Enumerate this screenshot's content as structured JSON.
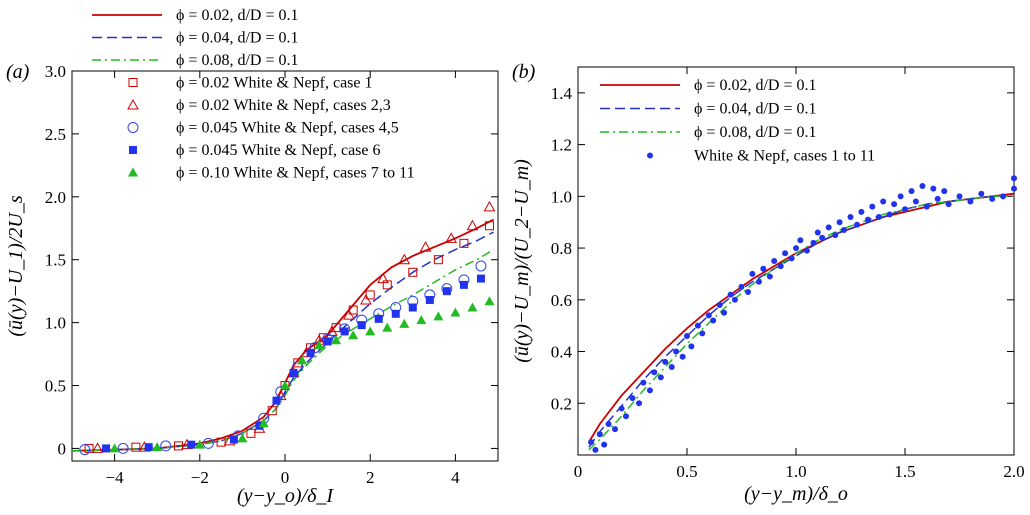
{
  "chart_data": [
    {
      "panel_label": "(a)",
      "type": "line",
      "xlabel": "(y−y_o)/δ_I",
      "ylabel": "(ū(y)−U_1)/2U_s",
      "xlim": [
        -5,
        5
      ],
      "ylim": [
        -0.1,
        3.0
      ],
      "xticks": [
        "−4",
        "−2",
        "0",
        "2",
        "4"
      ],
      "yticks": [
        "0",
        "0.5",
        "1.0",
        "1.5",
        "2.0",
        "2.5",
        "3.0"
      ],
      "grid": false,
      "legend_position": "top-left, outside plot",
      "series": [
        {
          "name": "ϕ = 0.02, d/D = 0.1",
          "kind": "line",
          "color": "#cc0000",
          "dash": "solid",
          "x": [
            -5,
            -4,
            -3,
            -2,
            -1.5,
            -1,
            -0.5,
            -0.2,
            0,
            0.2,
            0.5,
            1,
            1.5,
            2,
            2.5,
            3,
            3.5,
            4,
            4.5,
            4.9
          ],
          "y": [
            -0.02,
            -0.01,
            0,
            0.04,
            0.08,
            0.14,
            0.25,
            0.38,
            0.52,
            0.66,
            0.78,
            0.9,
            1.1,
            1.3,
            1.44,
            1.53,
            1.6,
            1.67,
            1.75,
            1.82
          ]
        },
        {
          "name": "ϕ = 0.04, d/D = 0.1",
          "kind": "line",
          "color": "#2233cc",
          "dash": "dashed",
          "x": [
            -5,
            -4,
            -3,
            -2,
            -1.5,
            -1,
            -0.5,
            -0.2,
            0,
            0.2,
            0.5,
            1,
            1.5,
            2,
            2.5,
            3,
            3.5,
            4,
            4.5,
            4.9
          ],
          "y": [
            -0.02,
            -0.01,
            0,
            0.03,
            0.06,
            0.12,
            0.22,
            0.32,
            0.45,
            0.56,
            0.68,
            0.84,
            1.0,
            1.15,
            1.28,
            1.4,
            1.5,
            1.58,
            1.65,
            1.72
          ]
        },
        {
          "name": "ϕ = 0.08, d/D = 0.1",
          "kind": "line",
          "color": "#22bb22",
          "dash": "dashdot",
          "x": [
            -5,
            -4,
            -3,
            -2,
            -1.5,
            -1,
            -0.5,
            -0.2,
            0,
            0.2,
            0.5,
            1,
            1.5,
            2,
            2.5,
            3,
            3.5,
            4,
            4.5,
            4.9
          ],
          "y": [
            -0.02,
            -0.01,
            0,
            0.03,
            0.06,
            0.12,
            0.22,
            0.32,
            0.42,
            0.54,
            0.66,
            0.82,
            0.93,
            1.03,
            1.13,
            1.22,
            1.32,
            1.42,
            1.5,
            1.58
          ]
        },
        {
          "name": "ϕ = 0.02  White & Nepf, case 1",
          "kind": "marker",
          "marker": "square-open",
          "color": "#cc0000",
          "x": [
            -4.6,
            -3.5,
            -2.5,
            -1.5,
            -0.8,
            -0.3,
            0,
            0.3,
            0.6,
            0.9,
            1.2,
            1.6,
            2,
            2.4,
            3,
            3.6,
            4.2,
            4.8
          ],
          "y": [
            0,
            0.01,
            0.02,
            0.05,
            0.12,
            0.3,
            0.5,
            0.68,
            0.8,
            0.88,
            0.96,
            1.1,
            1.22,
            1.3,
            1.4,
            1.5,
            1.63,
            1.77
          ]
        },
        {
          "name": "ϕ = 0.02  White & Nepf, cases 2,3",
          "kind": "marker",
          "marker": "triangle-open",
          "color": "#cc0000",
          "x": [
            -4.4,
            -3.3,
            -2.3,
            -1.3,
            -0.6,
            -0.1,
            0.2,
            0.5,
            0.8,
            1.1,
            1.5,
            1.9,
            2.3,
            2.8,
            3.3,
            3.9,
            4.4,
            4.8
          ],
          "y": [
            0,
            0.01,
            0.03,
            0.06,
            0.16,
            0.42,
            0.6,
            0.76,
            0.86,
            0.93,
            1.06,
            1.18,
            1.35,
            1.5,
            1.6,
            1.67,
            1.77,
            1.92
          ]
        },
        {
          "name": "ϕ = 0.045  White & Nepf, cases 4,5",
          "kind": "marker",
          "marker": "circle-open",
          "color": "#3344ee",
          "x": [
            -4.7,
            -3.8,
            -2.8,
            -1.8,
            -1.1,
            -0.5,
            -0.1,
            0.3,
            0.7,
            1.0,
            1.4,
            1.8,
            2.2,
            2.6,
            3,
            3.4,
            3.8,
            4.2,
            4.6
          ],
          "y": [
            -0.01,
            0,
            0.02,
            0.04,
            0.1,
            0.24,
            0.45,
            0.65,
            0.8,
            0.87,
            0.95,
            1.02,
            1.07,
            1.12,
            1.17,
            1.22,
            1.27,
            1.34,
            1.45
          ]
        },
        {
          "name": "ϕ = 0.045  White & Nepf, case 6",
          "kind": "marker",
          "marker": "square-filled",
          "color": "#2233ee",
          "x": [
            -4.2,
            -3.2,
            -2.2,
            -1.2,
            -0.6,
            -0.2,
            0.2,
            0.6,
            1.0,
            1.4,
            1.8,
            2.2,
            2.6,
            3,
            3.4,
            3.8,
            4.2,
            4.6
          ],
          "y": [
            0,
            0.01,
            0.03,
            0.07,
            0.18,
            0.38,
            0.6,
            0.76,
            0.85,
            0.93,
            0.98,
            1.03,
            1.07,
            1.12,
            1.18,
            1.25,
            1.3,
            1.35
          ]
        },
        {
          "name": "ϕ = 0.10  White & Nepf, cases 7 to 11",
          "kind": "marker",
          "marker": "triangle-filled",
          "color": "#22bb22",
          "x": [
            -4.0,
            -3.0,
            -2.0,
            -1.0,
            -0.5,
            0,
            0.4,
            0.8,
            1.2,
            1.6,
            2.0,
            2.4,
            2.8,
            3.2,
            3.6,
            4.0,
            4.4,
            4.8
          ],
          "y": [
            0,
            0.01,
            0.03,
            0.08,
            0.2,
            0.5,
            0.7,
            0.82,
            0.86,
            0.9,
            0.93,
            0.96,
            0.99,
            1.02,
            1.05,
            1.08,
            1.12,
            1.17
          ]
        }
      ]
    },
    {
      "panel_label": "(b)",
      "type": "line",
      "xlabel": "(y−y_m)/δ_o",
      "ylabel": "(ū(y)−U_m)/(U_2−U_m)",
      "xlim": [
        0,
        2.0
      ],
      "ylim": [
        0,
        1.5
      ],
      "xticks": [
        "0",
        "0.5",
        "1.0",
        "1.5",
        "2.0"
      ],
      "yticks": [
        "0.2",
        "0.4",
        "0.6",
        "0.8",
        "1.0",
        "1.2",
        "1.4"
      ],
      "grid": false,
      "legend_position": "top-left, inside plot",
      "series": [
        {
          "name": "ϕ = 0.02, d/D = 0.1",
          "kind": "line",
          "color": "#cc0000",
          "dash": "solid",
          "x": [
            0.05,
            0.1,
            0.2,
            0.3,
            0.4,
            0.5,
            0.6,
            0.7,
            0.8,
            0.9,
            1.0,
            1.1,
            1.2,
            1.3,
            1.4,
            1.5,
            1.6,
            1.7,
            1.8,
            1.9,
            2.0
          ],
          "y": [
            0.05,
            0.12,
            0.23,
            0.32,
            0.41,
            0.49,
            0.56,
            0.62,
            0.68,
            0.73,
            0.78,
            0.82,
            0.86,
            0.89,
            0.92,
            0.94,
            0.96,
            0.98,
            0.99,
            1.0,
            1.01
          ]
        },
        {
          "name": "ϕ = 0.04, d/D = 0.1",
          "kind": "line",
          "color": "#2233cc",
          "dash": "dashed",
          "x": [
            0.05,
            0.1,
            0.2,
            0.3,
            0.4,
            0.5,
            0.6,
            0.7,
            0.8,
            0.9,
            1.0,
            1.1,
            1.2,
            1.3,
            1.4,
            1.5,
            1.6,
            1.7,
            1.8,
            1.9,
            2.0
          ],
          "y": [
            0.03,
            0.09,
            0.19,
            0.29,
            0.38,
            0.46,
            0.54,
            0.61,
            0.67,
            0.72,
            0.77,
            0.82,
            0.86,
            0.89,
            0.92,
            0.95,
            0.97,
            0.98,
            0.99,
            1.0,
            1.0
          ]
        },
        {
          "name": "ϕ = 0.08, d/D = 0.1",
          "kind": "line",
          "color": "#22bb22",
          "dash": "dashdot",
          "x": [
            0.05,
            0.1,
            0.2,
            0.3,
            0.4,
            0.5,
            0.6,
            0.7,
            0.8,
            0.9,
            1.0,
            1.1,
            1.2,
            1.3,
            1.4,
            1.5,
            1.6,
            1.7,
            1.8,
            1.9,
            2.0
          ],
          "y": [
            0.02,
            0.06,
            0.15,
            0.25,
            0.34,
            0.43,
            0.51,
            0.59,
            0.66,
            0.72,
            0.78,
            0.83,
            0.87,
            0.9,
            0.93,
            0.95,
            0.97,
            0.98,
            0.99,
            1.0,
            1.0
          ]
        },
        {
          "name": "White & Nepf, cases 1 to 11",
          "kind": "marker",
          "marker": "dot",
          "color": "#2233ee",
          "x": [
            0.06,
            0.08,
            0.1,
            0.12,
            0.14,
            0.17,
            0.2,
            0.22,
            0.25,
            0.28,
            0.3,
            0.33,
            0.35,
            0.38,
            0.4,
            0.43,
            0.45,
            0.48,
            0.5,
            0.52,
            0.55,
            0.57,
            0.6,
            0.62,
            0.65,
            0.67,
            0.7,
            0.72,
            0.75,
            0.78,
            0.8,
            0.83,
            0.85,
            0.88,
            0.9,
            0.93,
            0.95,
            0.98,
            1.0,
            1.02,
            1.05,
            1.08,
            1.1,
            1.12,
            1.15,
            1.18,
            1.2,
            1.22,
            1.25,
            1.28,
            1.3,
            1.33,
            1.35,
            1.38,
            1.4,
            1.43,
            1.45,
            1.48,
            1.5,
            1.53,
            1.55,
            1.58,
            1.6,
            1.63,
            1.65,
            1.68,
            1.7,
            1.75,
            1.8,
            1.85,
            1.9,
            1.95,
            2.0,
            2.0
          ],
          "y": [
            0.05,
            0.02,
            0.08,
            0.04,
            0.12,
            0.1,
            0.18,
            0.15,
            0.22,
            0.2,
            0.28,
            0.25,
            0.32,
            0.3,
            0.36,
            0.34,
            0.4,
            0.38,
            0.46,
            0.42,
            0.5,
            0.47,
            0.54,
            0.52,
            0.58,
            0.55,
            0.62,
            0.6,
            0.65,
            0.63,
            0.7,
            0.67,
            0.72,
            0.69,
            0.75,
            0.73,
            0.78,
            0.76,
            0.8,
            0.83,
            0.79,
            0.82,
            0.86,
            0.84,
            0.88,
            0.85,
            0.9,
            0.87,
            0.92,
            0.89,
            0.94,
            0.91,
            0.96,
            0.92,
            0.98,
            0.93,
            0.97,
            1.0,
            0.95,
            1.02,
            0.98,
            1.04,
            0.96,
            1.03,
            0.99,
            1.02,
            0.97,
            1.0,
            0.98,
            1.01,
            0.99,
            1.0,
            1.07,
            1.03
          ]
        }
      ]
    }
  ]
}
